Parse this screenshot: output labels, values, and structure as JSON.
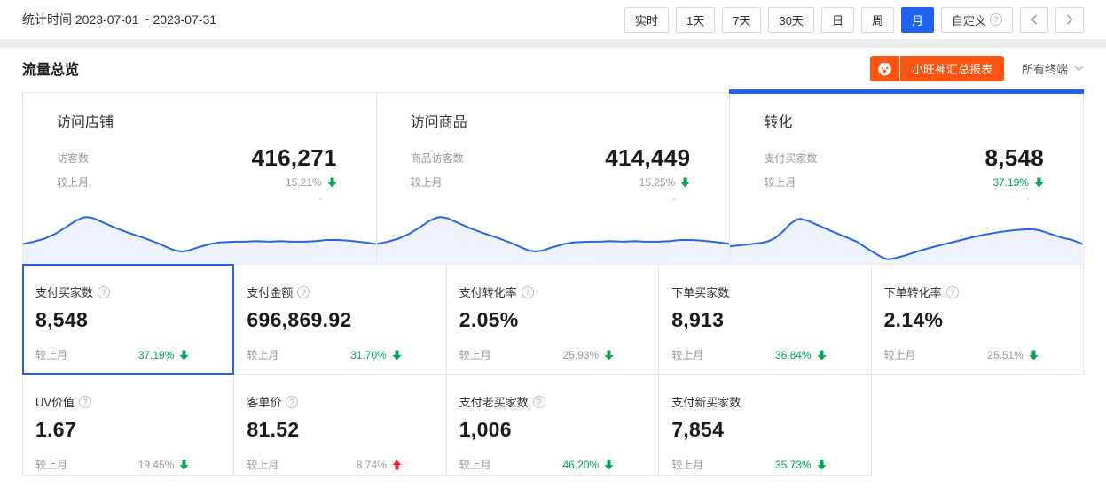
{
  "colors": {
    "accent_blue": "#2062f0",
    "brand_orange": "#ff5412",
    "trend_green": "#00a854",
    "trend_red": "#f5222d"
  },
  "topbar": {
    "stat_time_label": "统计时间",
    "stat_time_range": "2023-07-01 ~ 2023-07-31",
    "range_buttons": [
      {
        "key": "realtime",
        "label": "实时",
        "active": false,
        "help": false
      },
      {
        "key": "1day",
        "label": "1天",
        "active": false,
        "help": false
      },
      {
        "key": "7day",
        "label": "7天",
        "active": false,
        "help": false
      },
      {
        "key": "30day",
        "label": "30天",
        "active": false,
        "help": false
      },
      {
        "key": "day",
        "label": "日",
        "active": false,
        "help": false
      },
      {
        "key": "week",
        "label": "周",
        "active": false,
        "help": false
      },
      {
        "key": "month",
        "label": "月",
        "active": true,
        "help": false
      },
      {
        "key": "custom",
        "label": "自定义",
        "active": false,
        "help": true
      }
    ]
  },
  "header": {
    "title": "流量总览",
    "report_button_label": "小旺神汇总报表",
    "terminal_selector": "所有终端"
  },
  "overview_tabs": [
    {
      "key": "visit-shop",
      "title": "访问店铺",
      "metric_label": "访客数",
      "value": "416,271",
      "compare_label": "较上月",
      "percent": "15.21%",
      "direction": "down",
      "percent_green": false,
      "dash": "-",
      "selected": false,
      "spark": "a"
    },
    {
      "key": "visit-item",
      "title": "访问商品",
      "metric_label": "商品访客数",
      "value": "414,449",
      "compare_label": "较上月",
      "percent": "15.25%",
      "direction": "down",
      "percent_green": false,
      "dash": "-",
      "selected": false,
      "spark": "a"
    },
    {
      "key": "conversion",
      "title": "转化",
      "metric_label": "支付买家数",
      "value": "8,548",
      "compare_label": "较上月",
      "percent": "37.19%",
      "direction": "down",
      "percent_green": true,
      "dash": "-",
      "selected": true,
      "spark": "b"
    }
  ],
  "metrics": [
    {
      "key": "pay-buyers",
      "name": "支付买家数",
      "help": true,
      "value": "8,548",
      "compare_label": "较上月",
      "percent": "37.19%",
      "direction": "down",
      "percent_green": true,
      "selected": true,
      "empty": false
    },
    {
      "key": "pay-amount",
      "name": "支付金额",
      "help": true,
      "value": "696,869.92",
      "compare_label": "较上月",
      "percent": "31.70%",
      "direction": "down",
      "percent_green": true,
      "selected": false,
      "empty": false
    },
    {
      "key": "pay-conversion-rate",
      "name": "支付转化率",
      "help": true,
      "value": "2.05%",
      "compare_label": "较上月",
      "percent": "25.93%",
      "direction": "down",
      "percent_green": false,
      "selected": false,
      "empty": false
    },
    {
      "key": "order-buyers",
      "name": "下单买家数",
      "help": false,
      "value": "8,913",
      "compare_label": "较上月",
      "percent": "36.84%",
      "direction": "down",
      "percent_green": true,
      "selected": false,
      "empty": false
    },
    {
      "key": "order-conversion-rate",
      "name": "下单转化率",
      "help": true,
      "value": "2.14%",
      "compare_label": "较上月",
      "percent": "25.51%",
      "direction": "down",
      "percent_green": false,
      "selected": false,
      "empty": false
    },
    {
      "key": "uv-value",
      "name": "UV价值",
      "help": true,
      "value": "1.67",
      "compare_label": "较上月",
      "percent": "19.45%",
      "direction": "down",
      "percent_green": false,
      "selected": false,
      "empty": false
    },
    {
      "key": "avg-order-value",
      "name": "客单价",
      "help": true,
      "value": "81.52",
      "compare_label": "较上月",
      "percent": "8.74%",
      "direction": "up",
      "percent_green": false,
      "selected": false,
      "empty": false
    },
    {
      "key": "pay-old-buyers",
      "name": "支付老买家数",
      "help": true,
      "value": "1,006",
      "compare_label": "较上月",
      "percent": "46.20%",
      "direction": "down",
      "percent_green": true,
      "selected": false,
      "empty": false
    },
    {
      "key": "pay-new-buyers",
      "name": "支付新买家数",
      "help": false,
      "value": "7,854",
      "compare_label": "较上月",
      "percent": "35.73%",
      "direction": "down",
      "percent_green": true,
      "selected": false,
      "empty": false
    },
    {
      "key": "empty",
      "name": "",
      "help": false,
      "value": "",
      "compare_label": "",
      "percent": "",
      "direction": "none",
      "percent_green": false,
      "selected": false,
      "empty": true
    }
  ],
  "sparklines": {
    "a": [
      [
        0,
        66
      ],
      [
        3,
        62
      ],
      [
        6,
        57
      ],
      [
        9,
        49
      ],
      [
        12,
        38
      ],
      [
        15,
        26
      ],
      [
        17,
        21
      ],
      [
        18,
        20
      ],
      [
        20,
        22
      ],
      [
        23,
        30
      ],
      [
        26,
        38
      ],
      [
        30,
        47
      ],
      [
        34,
        55
      ],
      [
        38,
        64
      ],
      [
        41,
        72
      ],
      [
        43,
        77
      ],
      [
        45,
        79
      ],
      [
        47,
        77
      ],
      [
        50,
        71
      ],
      [
        53,
        66
      ],
      [
        56,
        63
      ],
      [
        60,
        62
      ],
      [
        63,
        62
      ],
      [
        66,
        61
      ],
      [
        70,
        62
      ],
      [
        73,
        61
      ],
      [
        76,
        62
      ],
      [
        80,
        62
      ],
      [
        83,
        61
      ],
      [
        86,
        59
      ],
      [
        89,
        59
      ],
      [
        92,
        60
      ],
      [
        95,
        62
      ],
      [
        98,
        64
      ],
      [
        100,
        66
      ]
    ],
    "b": [
      [
        0,
        70
      ],
      [
        3,
        68
      ],
      [
        6,
        66
      ],
      [
        9,
        64
      ],
      [
        11,
        61
      ],
      [
        13,
        55
      ],
      [
        15,
        45
      ],
      [
        17,
        32
      ],
      [
        19,
        24
      ],
      [
        20,
        23
      ],
      [
        22,
        26
      ],
      [
        25,
        34
      ],
      [
        28,
        42
      ],
      [
        32,
        52
      ],
      [
        36,
        62
      ],
      [
        39,
        74
      ],
      [
        42,
        85
      ],
      [
        44,
        91
      ],
      [
        45,
        92
      ],
      [
        47,
        90
      ],
      [
        50,
        85
      ],
      [
        53,
        79
      ],
      [
        57,
        72
      ],
      [
        61,
        66
      ],
      [
        65,
        60
      ],
      [
        69,
        54
      ],
      [
        73,
        49
      ],
      [
        77,
        45
      ],
      [
        81,
        42
      ],
      [
        84,
        41
      ],
      [
        86,
        41
      ],
      [
        88,
        43
      ],
      [
        91,
        49
      ],
      [
        94,
        55
      ],
      [
        97,
        59
      ],
      [
        100,
        66
      ]
    ]
  }
}
